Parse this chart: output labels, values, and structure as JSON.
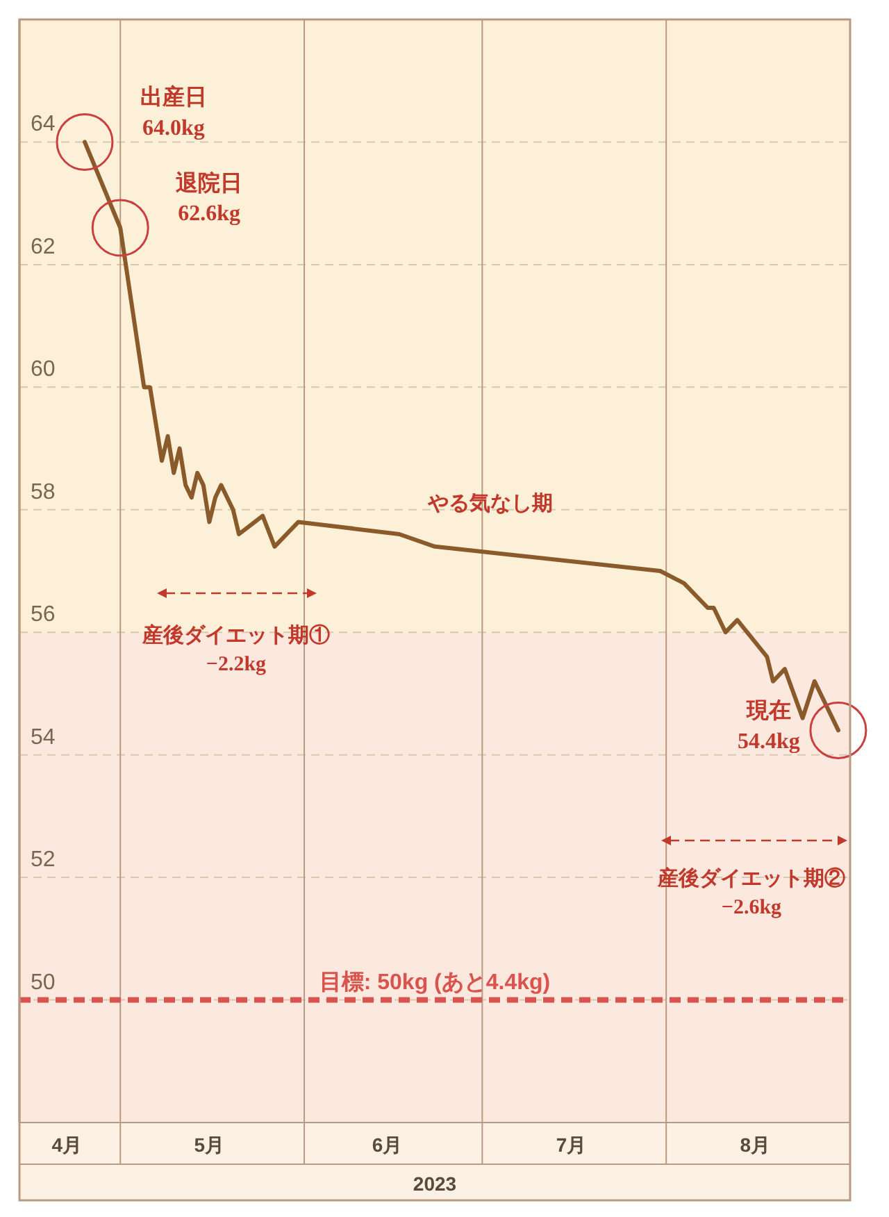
{
  "chart_data": {
    "type": "line",
    "xlabel": "2023",
    "x": [
      "2023-04-25",
      "2023-05-01",
      "2023-05-05",
      "2023-05-06",
      "2023-05-08",
      "2023-05-09",
      "2023-05-10",
      "2023-05-11",
      "2023-05-12",
      "2023-05-13",
      "2023-05-14",
      "2023-05-15",
      "2023-05-16",
      "2023-05-17",
      "2023-05-18",
      "2023-05-20",
      "2023-05-21",
      "2023-05-25",
      "2023-05-27",
      "2023-05-31",
      "2023-06-17",
      "2023-06-23",
      "2023-07-31",
      "2023-08-04",
      "2023-08-08",
      "2023-08-09",
      "2023-08-11",
      "2023-08-13",
      "2023-08-18",
      "2023-08-19",
      "2023-08-21",
      "2023-08-24",
      "2023-08-26",
      "2023-08-30"
    ],
    "series": [
      {
        "color": "#8b5a2b",
        "values": [
          64.0,
          62.6,
          60.0,
          60.0,
          58.8,
          59.2,
          58.6,
          59.0,
          58.4,
          58.2,
          58.6,
          58.4,
          57.8,
          58.2,
          58.4,
          58.0,
          57.6,
          57.9,
          57.4,
          57.8,
          57.6,
          57.4,
          57.0,
          56.8,
          56.4,
          56.4,
          56.0,
          56.2,
          55.6,
          55.2,
          55.4,
          54.6,
          55.2,
          54.4
        ]
      }
    ],
    "xlim": [
      "2023-04-14",
      "2023-09-01"
    ],
    "xticks": [
      {
        "value": "2023-04-22",
        "label": "4月"
      },
      {
        "value": "2023-05-01",
        "label": null
      },
      {
        "value": "2023-05-16",
        "label": "5月"
      },
      {
        "value": "2023-06-01",
        "label": null
      },
      {
        "value": "2023-06-15",
        "label": "6月"
      },
      {
        "value": "2023-07-01",
        "label": null
      },
      {
        "value": "2023-07-16",
        "label": "7月"
      },
      {
        "value": "2023-08-01",
        "label": null
      },
      {
        "value": "2023-08-16",
        "label": "8月"
      }
    ],
    "ylim": [
      48,
      66
    ],
    "yticks": [
      50,
      52,
      54,
      56,
      58,
      60,
      62,
      64
    ],
    "grid": true,
    "marker": "none",
    "line_style": "solid",
    "bands": [
      {
        "axis": "y",
        "from": 56,
        "to": 66,
        "color": "#fcf1d8"
      },
      {
        "axis": "y",
        "from": 48,
        "to": 56,
        "color": "#fbe8de"
      }
    ],
    "ref_lines": [
      {
        "axis": "y",
        "value": 50,
        "label": "目標: 50kg (あと4.4kg)",
        "color": "#d9534f",
        "line_style": "dashed"
      }
    ],
    "annotations": [
      {
        "text": "出産日\n64.0kg",
        "x": "2023-04-25",
        "y": 64.0
      },
      {
        "text": "退院日\n62.6kg",
        "x": "2023-05-01",
        "y": 62.6
      },
      {
        "text": "現在\n54.4kg",
        "x": "2023-08-30",
        "y": 54.4
      },
      "やる気なし期",
      "産後ダイエット期①\n−2.2kg",
      "産後ダイエット期②\n−2.6kg"
    ]
  }
}
